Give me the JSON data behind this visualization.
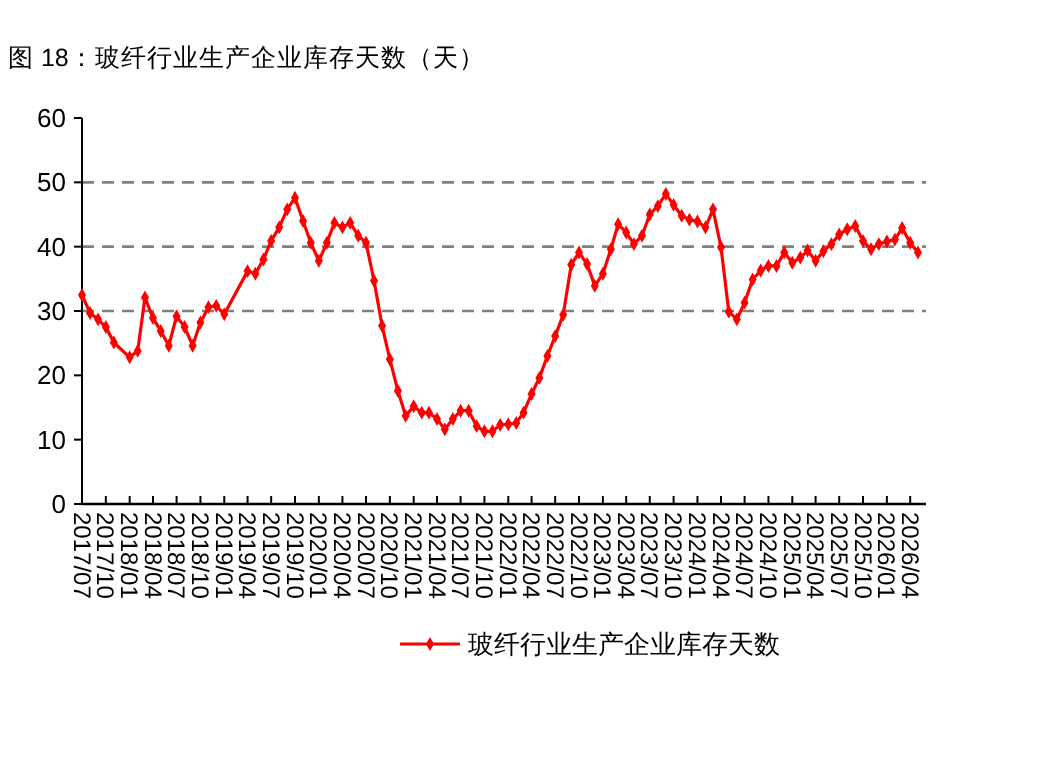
{
  "chart_data": {
    "type": "line",
    "title": "图 18：玻纤行业生产企业库存天数（天）",
    "x": [
      "2017-07",
      "2017-08",
      "2017-09",
      "2017-10",
      "2017-11",
      "2018-01",
      "2018-02",
      "2018-03",
      "2018-04",
      "2018-05",
      "2018-06",
      "2018-07",
      "2018-08",
      "2018-09",
      "2018-10",
      "2018-11",
      "2018-12",
      "2019-01",
      "2019-04",
      "2019-05",
      "2019-06",
      "2019-07",
      "2019-08",
      "2019-09",
      "2019-10",
      "2019-11",
      "2019-12",
      "2020-01",
      "2020-02",
      "2020-03",
      "2020-04",
      "2020-05",
      "2020-06",
      "2020-07",
      "2020-08",
      "2020-09",
      "2020-10",
      "2020-11",
      "2020-12",
      "2021-01",
      "2021-02",
      "2021-03",
      "2021-04",
      "2021-05",
      "2021-06",
      "2021-07",
      "2021-08",
      "2021-09",
      "2021-10",
      "2021-11",
      "2021-12",
      "2022-01",
      "2022-02",
      "2022-03",
      "2022-04",
      "2022-05",
      "2022-06",
      "2022-07",
      "2022-08",
      "2022-09",
      "2022-10",
      "2022-11",
      "2022-12",
      "2023-01",
      "2023-02",
      "2023-03",
      "2023-04",
      "2023-05",
      "2023-06",
      "2023-07",
      "2023-08",
      "2023-09",
      "2023-10",
      "2023-11",
      "2023-12",
      "2024-01",
      "2024-02",
      "2024-03",
      "2024-04",
      "2024-05",
      "2024-06",
      "2024-07",
      "2024-08",
      "2024-09",
      "2024-10",
      "2024-11",
      "2024-12",
      "2025-01",
      "2025-02",
      "2025-03",
      "2025-04",
      "2025-05",
      "2025-06",
      "2025-07",
      "2025-08",
      "2025-09",
      "2025-10",
      "2025-11",
      "2025-12",
      "2026-01",
      "2026-02",
      "2026-03",
      "2026-04",
      "2026-05"
    ],
    "series": [
      {
        "name": "玻纤行业生产企业库存天数",
        "color": "#ff0000",
        "values": [
          32.5,
          29.7,
          28.7,
          27.5,
          25.1,
          22.8,
          23.8,
          32.1,
          28.9,
          26.9,
          24.6,
          29.2,
          27.5,
          24.6,
          28.2,
          30.6,
          30.8,
          29.5,
          36.2,
          35.8,
          38.0,
          40.9,
          43.0,
          45.8,
          47.6,
          44.0,
          40.6,
          37.8,
          40.6,
          43.7,
          43.0,
          43.7,
          41.7,
          40.6,
          34.7,
          27.7,
          22.5,
          17.6,
          13.7,
          15.2,
          14.2,
          14.2,
          13.2,
          11.6,
          13.2,
          14.5,
          14.5,
          12.1,
          11.3,
          11.3,
          12.3,
          12.4,
          12.6,
          14.2,
          17.1,
          19.6,
          23.0,
          26.1,
          29.4,
          37.2,
          39.1,
          37.3,
          33.9,
          35.8,
          39.6,
          43.5,
          42.2,
          40.4,
          41.7,
          45.0,
          46.3,
          48.2,
          46.5,
          44.8,
          44.2,
          43.9,
          43.0,
          45.8,
          39.9,
          29.9,
          28.7,
          31.3,
          34.9,
          36.3,
          37.0,
          37.0,
          39.1,
          37.5,
          38.3,
          39.4,
          37.8,
          39.3,
          40.4,
          41.9,
          42.7,
          43.2,
          40.9,
          39.6,
          40.4,
          40.8,
          41.1,
          42.9,
          40.6,
          39.1
        ]
      }
    ],
    "xlim": [
      "2017-07",
      "2026-06"
    ],
    "xticks": [
      {
        "value": "2017-07",
        "label": "2017/07"
      },
      {
        "value": "2017-10",
        "label": "2017/10"
      },
      {
        "value": "2018-01",
        "label": "2018/01"
      },
      {
        "value": "2018-04",
        "label": "2018/04"
      },
      {
        "value": "2018-07",
        "label": "2018/07"
      },
      {
        "value": "2018-10",
        "label": "2018/10"
      },
      {
        "value": "2019-01",
        "label": "2019/01"
      },
      {
        "value": "2019-04",
        "label": "2019/04"
      },
      {
        "value": "2019-07",
        "label": "2019/07"
      },
      {
        "value": "2019-10",
        "label": "2019/10"
      },
      {
        "value": "2020-01",
        "label": "2020/01"
      },
      {
        "value": "2020-04",
        "label": "2020/04"
      },
      {
        "value": "2020-07",
        "label": "2020/07"
      },
      {
        "value": "2020-10",
        "label": "2020/10"
      },
      {
        "value": "2021-01",
        "label": "2021/01"
      },
      {
        "value": "2021-04",
        "label": "2021/04"
      },
      {
        "value": "2021-07",
        "label": "2021/07"
      },
      {
        "value": "2021-10",
        "label": "2021/10"
      },
      {
        "value": "2022-01",
        "label": "2022/01"
      },
      {
        "value": "2022-04",
        "label": "2022/04"
      },
      {
        "value": "2022-07",
        "label": "2022/07"
      },
      {
        "value": "2022-10",
        "label": "2022/10"
      },
      {
        "value": "2023-01",
        "label": "2023/01"
      },
      {
        "value": "2023-04",
        "label": "2023/04"
      },
      {
        "value": "2023-07",
        "label": "2023/07"
      },
      {
        "value": "2023-10",
        "label": "2023/10"
      },
      {
        "value": "2024-01",
        "label": "2024/01"
      },
      {
        "value": "2024-04",
        "label": "2024/04"
      },
      {
        "value": "2024-07",
        "label": "2024/07"
      },
      {
        "value": "2024-10",
        "label": "2024/10"
      },
      {
        "value": "2025-01",
        "label": "2025/01"
      },
      {
        "value": "2025-04",
        "label": "2025/04"
      },
      {
        "value": "2025-07",
        "label": "2025/07"
      },
      {
        "value": "2025-10",
        "label": "2025/10"
      },
      {
        "value": "2026-01",
        "label": "2026/01"
      },
      {
        "value": "2026-04",
        "label": "2026/04"
      }
    ],
    "ylim": [
      0,
      60
    ],
    "yticks": [
      0,
      10,
      20,
      30,
      40,
      50,
      60
    ],
    "ref_lines": [
      {
        "axis": "y",
        "value": 30,
        "color": "#808080",
        "line_style": "dashed"
      },
      {
        "axis": "y",
        "value": 40,
        "color": "#808080",
        "line_style": "dashed"
      },
      {
        "axis": "y",
        "value": 50,
        "color": "#808080",
        "line_style": "dashed"
      }
    ],
    "marker": "diamond",
    "line_style": "solid",
    "legend": "bottom"
  }
}
